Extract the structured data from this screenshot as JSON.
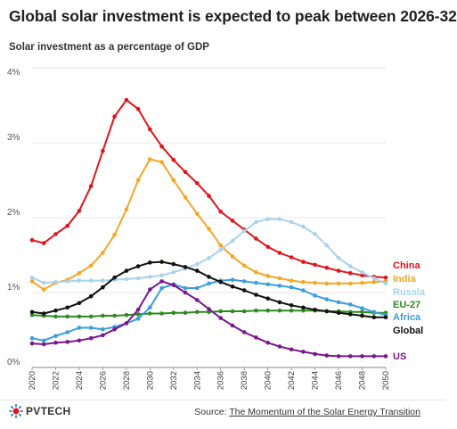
{
  "header": {
    "title": "Global solar investment is expected to peak between 2026-32",
    "subtitle": "Solar investment as a percentage of GDP"
  },
  "footer": {
    "logo_text": "PVTECH",
    "source_prefix": "Source: ",
    "source_link": "The Momentum of the Solar Energy Transition"
  },
  "chart_data": {
    "type": "line",
    "ylabel": "",
    "xlabel": "",
    "ylim": [
      0,
      4
    ],
    "xlim": [
      2020,
      2050
    ],
    "grid": true,
    "legend": "right-end labels",
    "y_ticks": [
      "0%",
      "1%",
      "2%",
      "3%",
      "4%"
    ],
    "x_ticks": [
      "2020",
      "2022",
      "2024",
      "2026",
      "2028",
      "2030",
      "2032",
      "2034",
      "2036",
      "2038",
      "2040",
      "2042",
      "2044",
      "2046",
      "2048",
      "2050"
    ],
    "x": [
      2020,
      2021,
      2022,
      2023,
      2024,
      2025,
      2026,
      2027,
      2028,
      2029,
      2030,
      2031,
      2032,
      2033,
      2034,
      2035,
      2036,
      2037,
      2038,
      2039,
      2040,
      2041,
      2042,
      2043,
      2044,
      2045,
      2046,
      2047,
      2048,
      2049,
      2050
    ],
    "series": [
      {
        "name": "China",
        "color": "#e3131b",
        "values": [
          1.7,
          1.66,
          1.78,
          1.89,
          2.09,
          2.42,
          2.89,
          3.35,
          3.57,
          3.45,
          3.18,
          2.95,
          2.77,
          2.61,
          2.46,
          2.29,
          2.08,
          1.96,
          1.84,
          1.72,
          1.61,
          1.53,
          1.47,
          1.41,
          1.37,
          1.33,
          1.29,
          1.26,
          1.23,
          1.21,
          1.2
        ]
      },
      {
        "name": "India",
        "color": "#f5a623",
        "values": [
          1.15,
          1.04,
          1.13,
          1.17,
          1.26,
          1.36,
          1.53,
          1.77,
          2.11,
          2.5,
          2.78,
          2.74,
          2.5,
          2.27,
          2.05,
          1.85,
          1.63,
          1.48,
          1.36,
          1.27,
          1.22,
          1.19,
          1.16,
          1.14,
          1.13,
          1.12,
          1.12,
          1.12,
          1.13,
          1.14,
          1.15
        ]
      },
      {
        "name": "Russia",
        "color": "#a9d3ea",
        "values": [
          1.2,
          1.13,
          1.14,
          1.15,
          1.16,
          1.16,
          1.16,
          1.17,
          1.18,
          1.19,
          1.21,
          1.23,
          1.27,
          1.32,
          1.38,
          1.46,
          1.57,
          1.69,
          1.82,
          1.94,
          1.98,
          1.98,
          1.94,
          1.88,
          1.78,
          1.63,
          1.46,
          1.35,
          1.27,
          1.19,
          1.12
        ]
      },
      {
        "name": "EU-27",
        "color": "#2e8b1f",
        "values": [
          0.7,
          0.69,
          0.68,
          0.68,
          0.68,
          0.68,
          0.69,
          0.69,
          0.7,
          0.71,
          0.72,
          0.72,
          0.73,
          0.73,
          0.74,
          0.74,
          0.75,
          0.75,
          0.75,
          0.76,
          0.76,
          0.76,
          0.76,
          0.76,
          0.76,
          0.75,
          0.75,
          0.74,
          0.74,
          0.73,
          0.73
        ]
      },
      {
        "name": "Africa",
        "color": "#3a9ede",
        "values": [
          0.39,
          0.36,
          0.42,
          0.47,
          0.53,
          0.53,
          0.51,
          0.54,
          0.59,
          0.65,
          0.8,
          1.06,
          1.11,
          1.06,
          1.06,
          1.12,
          1.16,
          1.17,
          1.15,
          1.13,
          1.11,
          1.09,
          1.07,
          1.03,
          0.96,
          0.91,
          0.87,
          0.84,
          0.79,
          0.74,
          0.7
        ]
      },
      {
        "name": "Global",
        "color": "#111111",
        "values": [
          0.74,
          0.72,
          0.76,
          0.8,
          0.86,
          0.95,
          1.07,
          1.2,
          1.29,
          1.35,
          1.4,
          1.41,
          1.38,
          1.34,
          1.29,
          1.21,
          1.14,
          1.08,
          1.03,
          0.97,
          0.92,
          0.87,
          0.83,
          0.8,
          0.77,
          0.75,
          0.73,
          0.71,
          0.69,
          0.67,
          0.67
        ]
      },
      {
        "name": "US",
        "color": "#7a168e",
        "values": [
          0.32,
          0.31,
          0.33,
          0.34,
          0.36,
          0.39,
          0.43,
          0.51,
          0.59,
          0.77,
          1.04,
          1.15,
          1.1,
          1.0,
          0.9,
          0.78,
          0.66,
          0.56,
          0.47,
          0.4,
          0.33,
          0.28,
          0.24,
          0.21,
          0.18,
          0.16,
          0.15,
          0.15,
          0.15,
          0.15,
          0.15
        ]
      }
    ]
  }
}
